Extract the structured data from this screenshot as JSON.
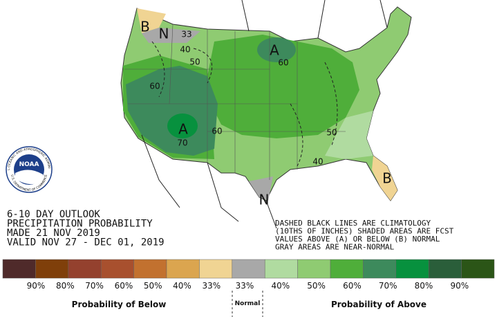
{
  "title_block": {
    "lines": [
      "6-10 DAY OUTLOOK",
      "PRECIPITATION PROBABILITY",
      "MADE 21 NOV 2019",
      "VALID NOV 27 - DEC 01, 2019"
    ]
  },
  "note": {
    "lines": [
      "DASHED BLACK LINES ARE CLIMATOLOGY",
      "(10THS OF INCHES) SHADED AREAS ARE FCST",
      "VALUES ABOVE (A) OR BELOW (B) NORMAL",
      "GRAY AREAS ARE NEAR-NORMAL"
    ]
  },
  "map_labels": [
    "B",
    "N",
    "33",
    "40",
    "50",
    "60",
    "A",
    "60",
    "A",
    "70",
    "60",
    "50",
    "40",
    "B",
    "N"
  ],
  "logo": {
    "name": "NOAA",
    "ring_top": "NATIONAL OCEANIC AND ATMOSPHERIC ADMINISTRATION",
    "ring_bottom": "U.S. DEPARTMENT OF COMMERCE"
  },
  "legend": {
    "colors": [
      "#4f2a2a",
      "#7f3f0a",
      "#94412e",
      "#a8502e",
      "#c2712f",
      "#dba54f",
      "#f0d493",
      "#a8a8a8",
      "#b0dba0",
      "#8fcb72",
      "#4fae3a",
      "#3d8a5c",
      "#07913e",
      "#2a5e3a",
      "#2b5517"
    ],
    "labels_below": [
      "90%",
      "80%",
      "70%",
      "60%",
      "50%",
      "40%",
      "33%"
    ],
    "labels_above": [
      "33%",
      "40%",
      "50%",
      "60%",
      "70%",
      "80%",
      "90%"
    ],
    "below": "Probability of Below",
    "normal": "Normal",
    "above": "Probability of Above"
  }
}
